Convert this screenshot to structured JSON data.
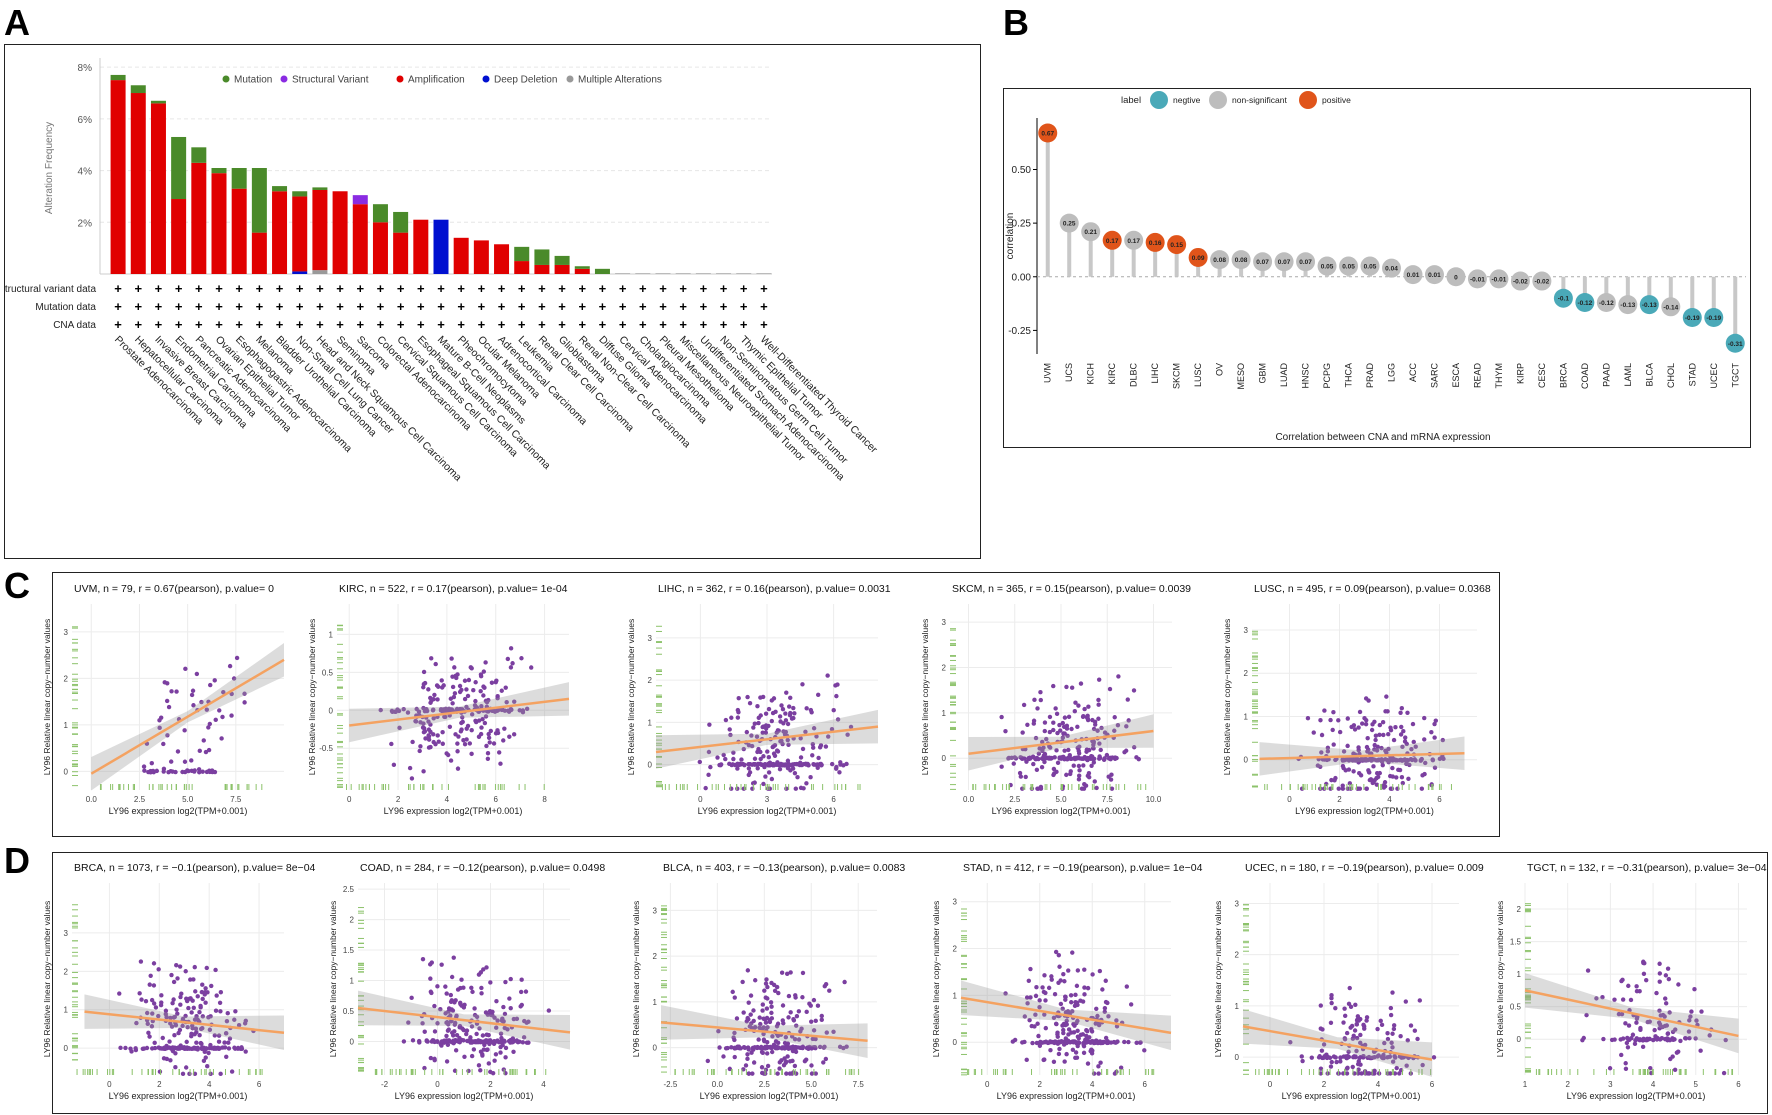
{
  "panels": {
    "a": "A",
    "b": "B",
    "c": "C",
    "d": "D"
  },
  "colors": {
    "mutation": "#4a8a2a",
    "structural": "#8a2be2",
    "amplification": "#e00000",
    "deep_deletion": "#0010d0",
    "multiple": "#999999",
    "negative": "#4aa9b8",
    "non_significant": "#bdbdbd",
    "positive": "#e0541a",
    "scatter_point": "#7b3fa0",
    "fit_line": "#f4a261",
    "rug": "#8cc26a"
  },
  "chart_data": [
    {
      "type": "bar",
      "id": "A",
      "ylabel": "Alteration Frequency",
      "yticks": [
        "2%",
        "4%",
        "6%",
        "8%"
      ],
      "ylim": [
        0,
        8.2
      ],
      "legend": [
        "Mutation",
        "Structural Variant",
        "Amplification",
        "Deep Deletion",
        "Multiple Alterations"
      ],
      "row_labels": [
        "Structural variant data",
        "Mutation data",
        "CNA data"
      ],
      "categories": [
        "Prostate Adenocarcinoma",
        "Hepatocellular Carcinoma",
        "Invasive Breast Carcinoma",
        "Endometrial Carcinoma",
        "Pancreatic Adenocarcinoma",
        "Ovarian Epithelial Tumor",
        "Esophagogastric Adenocarcinoma",
        "Melanoma",
        "Bladder Urothelial Carcinoma",
        "Non-Small Cell Lung Cancer",
        "Head and Neck Squamous Cell Carcinoma",
        "Seminoma",
        "Sarcoma",
        "Colorectal Adenocarcinoma",
        "Cervical Squamous Cell Carcinoma",
        "Esophageal Squamous Cell Carcinoma",
        "Mature B-Cell Neoplasms",
        "Pheochromocytoma",
        "Ocular Melanoma",
        "Adrenocortical Carcinoma",
        "Leukemia",
        "Renal Clear Cell Carcinoma",
        "Glioblastoma",
        "Renal Non-Clear Cell Carcinoma",
        "Diffuse Glioma",
        "Cervical Adenocarcinoma",
        "Cholangiocarcinoma",
        "Pleural Mesothelioma",
        "Miscellaneous Neuroepithelial Tumor",
        "Undifferentiated Stomach Adenocarcinoma",
        "Non-Seminomatous Germ Cell Tumor",
        "Thymic Epithelial Tumor",
        "Well-Differentiated Thyroid Cancer"
      ],
      "series": [
        {
          "name": "Amplification",
          "values": [
            7.5,
            7.0,
            6.6,
            2.9,
            4.3,
            3.9,
            3.3,
            1.6,
            3.2,
            2.9,
            3.1,
            3.2,
            2.7,
            2.0,
            1.6,
            2.1,
            0,
            1.4,
            1.3,
            1.15,
            0.5,
            0.35,
            0.35,
            0.2,
            0,
            0,
            0,
            0,
            0,
            0,
            0,
            0,
            0
          ]
        },
        {
          "name": "Mutation",
          "values": [
            0.2,
            0.3,
            0.1,
            2.4,
            0.6,
            0.2,
            0.8,
            2.5,
            0.2,
            0.2,
            0.1,
            0,
            0,
            0.7,
            0.8,
            0,
            0,
            0,
            0,
            0,
            0.55,
            0.6,
            0.35,
            0.1,
            0.2,
            0,
            0,
            0,
            0,
            0,
            0,
            0,
            0
          ]
        },
        {
          "name": "Structural Variant",
          "values": [
            0,
            0,
            0,
            0,
            0,
            0,
            0,
            0,
            0,
            0,
            0,
            0,
            0.35,
            0,
            0,
            0,
            0,
            0,
            0,
            0,
            0,
            0,
            0,
            0,
            0,
            0,
            0,
            0,
            0,
            0,
            0,
            0,
            0
          ]
        },
        {
          "name": "Deep Deletion",
          "values": [
            0,
            0,
            0,
            0,
            0,
            0,
            0,
            0,
            0,
            0.1,
            0,
            0,
            0,
            0,
            0,
            0,
            2.1,
            0,
            0,
            0,
            0,
            0,
            0,
            0,
            0,
            0,
            0,
            0,
            0,
            0,
            0,
            0,
            0
          ]
        },
        {
          "name": "Multiple Alterations",
          "values": [
            0,
            0,
            0,
            0,
            0,
            0,
            0,
            0,
            0,
            0,
            0.15,
            0,
            0,
            0,
            0,
            0,
            0,
            0,
            0,
            0,
            0,
            0,
            0,
            0,
            0,
            0,
            0,
            0,
            0,
            0,
            0,
            0,
            0
          ]
        }
      ]
    },
    {
      "type": "scatter",
      "id": "B",
      "ylabel": "correlation",
      "xlabel": "Correlation between CNA and mRNA expression",
      "legend_title": "label",
      "legend": [
        "negtive",
        "non-significant",
        "positive"
      ],
      "yticks": [
        "0.50",
        "0.25",
        "0.00",
        "-0.25"
      ],
      "ylim": [
        -0.36,
        0.74
      ],
      "categories": [
        "UVM",
        "UCS",
        "KICH",
        "KIRC",
        "DLBC",
        "LIHC",
        "SKCM",
        "LUSC",
        "OV",
        "MESO",
        "GBM",
        "LUAD",
        "HNSC",
        "PCPG",
        "THCA",
        "PRAD",
        "LGG",
        "ACC",
        "SARC",
        "ESCA",
        "READ",
        "THYM",
        "KIRP",
        "CESC",
        "BRCA",
        "COAD",
        "PAAD",
        "LAML",
        "BLCA",
        "CHOL",
        "STAD",
        "UCEC",
        "TGCT"
      ],
      "values": [
        0.67,
        0.25,
        0.21,
        0.17,
        0.17,
        0.16,
        0.15,
        0.09,
        0.08,
        0.08,
        0.07,
        0.07,
        0.07,
        0.05,
        0.05,
        0.05,
        0.04,
        0.01,
        0.01,
        0,
        -0.01,
        -0.01,
        -0.02,
        -0.02,
        -0.1,
        -0.12,
        -0.12,
        -0.13,
        -0.13,
        -0.14,
        -0.19,
        -0.19,
        -0.31
      ],
      "value_labels": [
        "0.67",
        "0.25",
        "0.21",
        "0.17",
        "0.17",
        "0.16",
        "0.15",
        "0.09",
        "0.08",
        "0.08",
        "0.07",
        "0.07",
        "0.07",
        "0.05",
        "0.05",
        "0.05",
        "0.04",
        "0.01",
        "0.01",
        "0",
        "-0.01",
        "-0.01",
        "-0.02",
        "-0.02",
        "-0.1",
        "-0.12",
        "-0.12",
        "-0.13",
        "-0.13",
        "-0.14",
        "-0.19",
        "-0.19",
        "-0.31"
      ],
      "groups": [
        "positive",
        "non-significant",
        "non-significant",
        "positive",
        "non-significant",
        "positive",
        "positive",
        "positive",
        "non-significant",
        "non-significant",
        "non-significant",
        "non-significant",
        "non-significant",
        "non-significant",
        "non-significant",
        "non-significant",
        "non-significant",
        "non-significant",
        "non-significant",
        "non-significant",
        "non-significant",
        "non-significant",
        "non-significant",
        "non-significant",
        "negative",
        "negative",
        "non-significant",
        "non-significant",
        "negative",
        "non-significant",
        "negative",
        "negative",
        "negative"
      ]
    },
    {
      "type": "scatter",
      "id": "C-D",
      "ylabel": "LY96 Relative linear copy−number values",
      "xlabel": "LY96 expression log2(TPM+0.001)",
      "plots": [
        {
          "title": "UVM, n = 79, r = 0.67(pearson), p.value= 0",
          "xlim": [
            -1,
            10
          ],
          "ylim": [
            -0.4,
            3.6
          ],
          "xticks": [
            0,
            2.5,
            5.0,
            7.5
          ],
          "xtick_labels": [
            "0.0",
            "2.5",
            "5.0",
            "7.5"
          ],
          "yticks": [
            0,
            1,
            2,
            3
          ],
          "n": 79,
          "fit": [
            0,
            -0.05,
            10,
            2.4
          ]
        },
        {
          "title": "KIRC, n = 522, r = 0.17(pearson), p.value= 1e-04",
          "xlim": [
            -0.5,
            9
          ],
          "ylim": [
            -1.05,
            1.4
          ],
          "xticks": [
            0,
            2,
            4,
            6,
            8
          ],
          "xtick_labels": [
            "0",
            "2",
            "4",
            "6",
            "8"
          ],
          "yticks": [
            -0.5,
            0,
            0.5,
            1.0
          ],
          "n": 522,
          "fit": [
            0,
            -0.2,
            9,
            0.15
          ]
        },
        {
          "title": "LIHC, n = 362, r = 0.16(pearson), p.value= 0.0031",
          "xlim": [
            -2,
            8
          ],
          "ylim": [
            -0.6,
            3.8
          ],
          "xticks": [
            0,
            3,
            6
          ],
          "xtick_labels": [
            "0",
            "3",
            "6"
          ],
          "yticks": [
            0,
            1,
            2,
            3
          ],
          "n": 362,
          "fit": [
            -2,
            0.3,
            8,
            0.9
          ]
        },
        {
          "title": "SKCM, n = 365, r = 0.15(pearson), p.value= 0.0039",
          "xlim": [
            -1,
            11
          ],
          "ylim": [
            -0.7,
            3.4
          ],
          "xticks": [
            0,
            2.5,
            5.0,
            7.5,
            10.0
          ],
          "xtick_labels": [
            "0.0",
            "2.5",
            "5.0",
            "7.5",
            "10.0"
          ],
          "yticks": [
            0,
            1,
            2,
            3
          ],
          "n": 365,
          "fit": [
            0,
            0.1,
            10,
            0.6
          ]
        },
        {
          "title": "LUSC, n = 495, r = 0.09(pearson), p.value= 0.0368",
          "xlim": [
            -1.5,
            7.5
          ],
          "ylim": [
            -0.7,
            3.6
          ],
          "xticks": [
            0,
            2,
            4,
            6
          ],
          "xtick_labels": [
            "0",
            "2",
            "4",
            "6"
          ],
          "yticks": [
            0,
            1,
            2,
            3
          ],
          "n": 495,
          "fit": [
            -1.2,
            0.02,
            7,
            0.15
          ]
        },
        {
          "title": "BRCA, n = 1073, r = −0.1(pearson), p.value= 8e−04",
          "xlim": [
            -1.5,
            7
          ],
          "ylim": [
            -0.7,
            4.3
          ],
          "xticks": [
            0,
            2,
            4,
            6
          ],
          "xtick_labels": [
            "0",
            "2",
            "4",
            "6"
          ],
          "yticks": [
            0,
            1,
            2,
            3
          ],
          "n": 1073,
          "fit": [
            -1,
            0.95,
            7,
            0.4
          ]
        },
        {
          "title": "COAD, n = 284, r = −0.12(pearson), p.value= 0.0498",
          "xlim": [
            -3,
            5
          ],
          "ylim": [
            -0.55,
            2.6
          ],
          "xticks": [
            -2,
            0,
            2,
            4
          ],
          "xtick_labels": [
            "-2",
            "0",
            "2",
            "4"
          ],
          "yticks": [
            0,
            0.5,
            1.0,
            1.5,
            2.0,
            2.5
          ],
          "n": 284,
          "fit": [
            -3,
            0.55,
            5,
            0.15
          ]
        },
        {
          "title": "BLCA, n = 403, r = −0.13(pearson), p.value= 0.0083",
          "xlim": [
            -3,
            8.5
          ],
          "ylim": [
            -0.6,
            3.6
          ],
          "xticks": [
            -2.5,
            0,
            2.5,
            5.0,
            7.5
          ],
          "xtick_labels": [
            "-2.5",
            "0.0",
            "2.5",
            "5.0",
            "7.5"
          ],
          "yticks": [
            0,
            1,
            2,
            3
          ],
          "n": 403,
          "fit": [
            -3,
            0.55,
            8,
            0.15
          ]
        },
        {
          "title": "STAD, n = 412, r = −0.19(pearson), p.value= 1e−04",
          "xlim": [
            -1,
            7
          ],
          "ylim": [
            -0.7,
            3.4
          ],
          "xticks": [
            0,
            2,
            4,
            6
          ],
          "xtick_labels": [
            "0",
            "2",
            "4",
            "6"
          ],
          "yticks": [
            0,
            1,
            2,
            3
          ],
          "n": 412,
          "fit": [
            -1,
            0.95,
            7,
            0.2
          ]
        },
        {
          "title": "UCEC, n = 180, r = −0.19(pearson), p.value= 0.009",
          "xlim": [
            -1,
            7
          ],
          "ylim": [
            -0.35,
            3.4
          ],
          "xticks": [
            0,
            2,
            4,
            6
          ],
          "xtick_labels": [
            "0",
            "2",
            "4",
            "6"
          ],
          "yticks": [
            0,
            1,
            2,
            3
          ],
          "n": 180,
          "fit": [
            -1,
            0.6,
            6,
            -0.05
          ]
        },
        {
          "title": "TGCT, n = 132, r = −0.31(pearson), p.value= 3e−04",
          "xlim": [
            1,
            6.2
          ],
          "ylim": [
            -0.55,
            2.4
          ],
          "xticks": [
            1,
            2,
            3,
            4,
            5,
            6
          ],
          "xtick_labels": [
            "1",
            "2",
            "3",
            "4",
            "5",
            "6"
          ],
          "yticks": [
            0,
            0.5,
            1.0,
            1.5,
            2.0
          ],
          "n": 132,
          "fit": [
            1,
            0.75,
            6,
            0.05
          ]
        }
      ]
    }
  ]
}
